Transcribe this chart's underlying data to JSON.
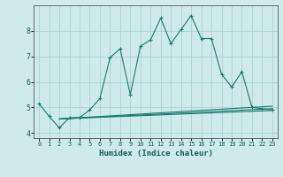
{
  "title": "",
  "xlabel": "Humidex (Indice chaleur)",
  "bg_color": "#ceeaea",
  "grid_color": "#a8d4d4",
  "line_color": "#1a7a6e",
  "xlim": [
    -0.5,
    23.5
  ],
  "ylim": [
    3.8,
    9.0
  ],
  "yticks": [
    4,
    5,
    6,
    7,
    8
  ],
  "xticks": [
    0,
    1,
    2,
    3,
    4,
    5,
    6,
    7,
    8,
    9,
    10,
    11,
    12,
    13,
    14,
    15,
    16,
    17,
    18,
    19,
    20,
    21,
    22,
    23
  ],
  "series1_x": [
    0,
    1,
    2,
    3,
    4,
    5,
    6,
    7,
    8,
    9,
    10,
    11,
    12,
    13,
    14,
    15,
    16,
    17,
    18,
    19,
    20,
    21,
    22,
    23
  ],
  "series1_y": [
    5.15,
    4.65,
    4.2,
    4.6,
    4.6,
    4.9,
    5.35,
    6.95,
    7.3,
    5.5,
    7.4,
    7.65,
    8.5,
    7.5,
    8.05,
    8.6,
    7.7,
    7.7,
    6.3,
    5.8,
    6.4,
    5.0,
    4.95,
    4.9
  ],
  "series2_x": [
    2,
    23
  ],
  "series2_y": [
    4.55,
    5.05
  ],
  "series3_x": [
    2,
    23
  ],
  "series3_y": [
    4.55,
    4.95
  ],
  "series4_x": [
    2,
    23
  ],
  "series4_y": [
    4.55,
    4.88
  ]
}
